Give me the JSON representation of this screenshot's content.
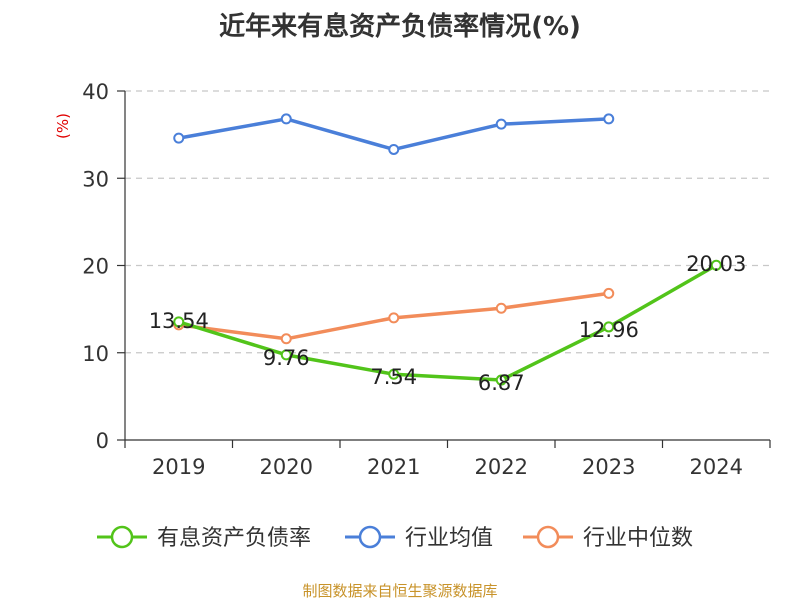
{
  "chart_data": {
    "type": "line",
    "title": "近年来有息资产负债率情况(%)",
    "ylabel": "(%)",
    "categories": [
      "2019",
      "2020",
      "2021",
      "2022",
      "2023",
      "2024"
    ],
    "ylim": [
      0,
      40
    ],
    "yticks": [
      0,
      10,
      20,
      30,
      40
    ],
    "grid": true,
    "legend_position": "bottom",
    "series": [
      {
        "name": "有息资产负债率",
        "color": "#52c41a",
        "values": [
          13.54,
          9.76,
          7.54,
          6.87,
          12.96,
          20.03
        ],
        "labels": [
          "13.54",
          "9.76",
          "7.54",
          "6.87",
          "12.96",
          "20.03"
        ]
      },
      {
        "name": "行业均值",
        "color": "#4a7fd9",
        "values": [
          34.6,
          36.8,
          33.3,
          36.2,
          36.8,
          null
        ]
      },
      {
        "name": "行业中位数",
        "color": "#f28c5a",
        "values": [
          13.2,
          11.6,
          14.0,
          15.1,
          16.8,
          null
        ]
      }
    ],
    "source": "制图数据来自恒生聚源数据库"
  }
}
